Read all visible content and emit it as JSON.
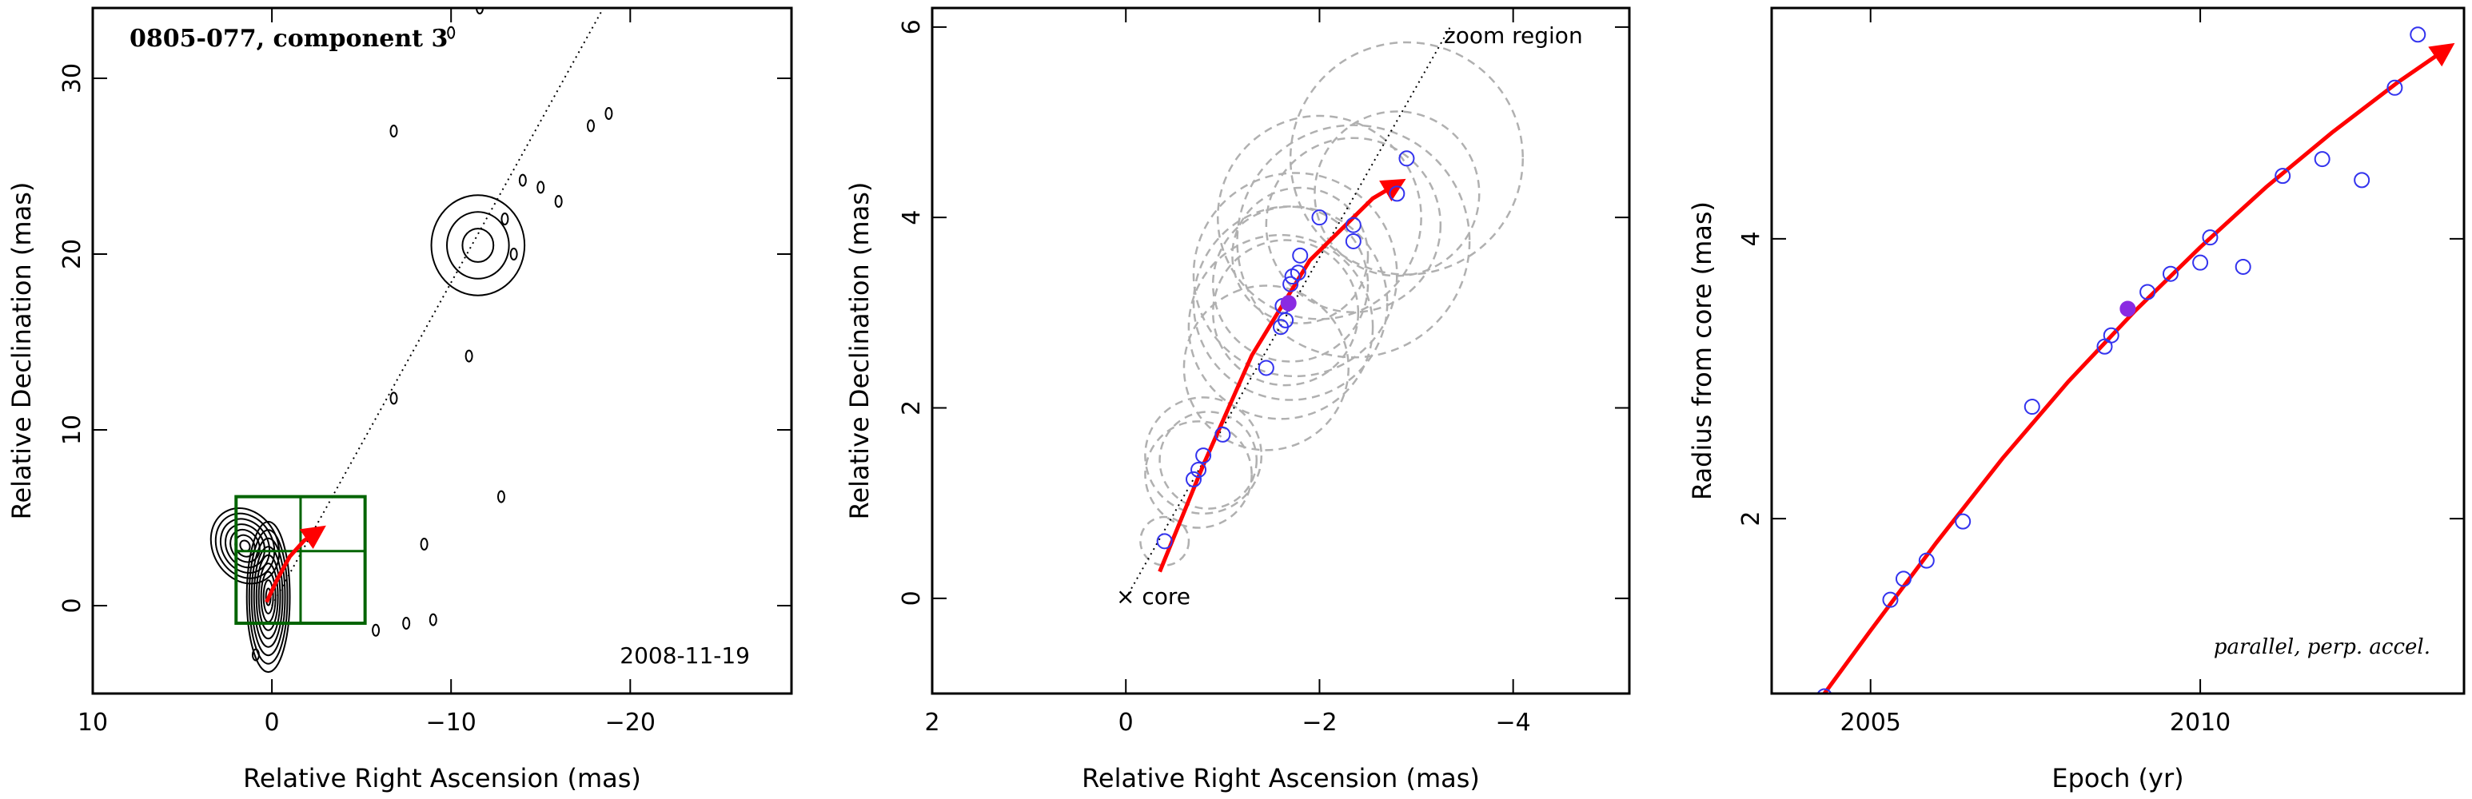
{
  "chart_data": [
    {
      "type": "scatter",
      "title": "0805-077, component 3",
      "xlabel": "Relative Right Ascension (mas)",
      "ylabel": "Relative Declination (mas)",
      "xlim": [
        10,
        -29
      ],
      "ylim": [
        -5,
        34
      ],
      "x_ticks": [
        10,
        0,
        -10,
        -20
      ],
      "y_ticks": [
        0,
        10,
        20,
        30
      ],
      "date_label": "2008-11-19",
      "plot_kind": "contour map",
      "contour_centers": [
        {
          "x": 0.2,
          "y": 0.5,
          "rx": 1.2,
          "ry": 4.2,
          "angle": 0,
          "levels": 9
        },
        {
          "x": 1.5,
          "y": 3.4,
          "rx": 1.8,
          "ry": 2.2,
          "angle": -30,
          "levels": 7
        },
        {
          "x": -11.5,
          "y": 20.5,
          "rx": 2.6,
          "ry": 2.8,
          "angle": 0,
          "levels": 3
        }
      ],
      "contour_blobs": [
        {
          "x": -6.8,
          "y": 27.0
        },
        {
          "x": -11.6,
          "y": 34.0
        },
        {
          "x": -10.0,
          "y": 32.6
        },
        {
          "x": -14.0,
          "y": 24.2
        },
        {
          "x": -15.0,
          "y": 23.8
        },
        {
          "x": -16.0,
          "y": 23.0
        },
        {
          "x": -13.0,
          "y": 22.0
        },
        {
          "x": -17.8,
          "y": 27.3
        },
        {
          "x": -18.8,
          "y": 28.0
        },
        {
          "x": -11.0,
          "y": 14.2
        },
        {
          "x": -6.8,
          "y": 11.8
        },
        {
          "x": -12.8,
          "y": 6.2
        },
        {
          "x": -8.5,
          "y": 3.5
        },
        {
          "x": -9.0,
          "y": -0.8
        },
        {
          "x": -7.5,
          "y": -1.0
        },
        {
          "x": -5.8,
          "y": -1.4
        },
        {
          "x": 0.9,
          "y": -2.8
        },
        {
          "x": -13.5,
          "y": 20.0
        }
      ],
      "jet_axis": {
        "x": [
          0,
          -18.5
        ],
        "y": [
          0,
          34
        ]
      },
      "zoom_box": {
        "x": [
          2,
          -5.2
        ],
        "y": [
          -1,
          6.2
        ]
      },
      "zoom_cross": {
        "x": -1.6,
        "y": 3.1
      },
      "trajectory": {
        "x": [
          0.3,
          -0.3,
          -1.0,
          -1.8,
          -2.8
        ],
        "y": [
          0.2,
          1.5,
          2.8,
          3.7,
          4.4
        ]
      },
      "colors": {
        "box": "#006400",
        "contour": "#000000",
        "arrow": "#ff0000",
        "axis_line": "#000000"
      }
    },
    {
      "type": "scatter",
      "xlabel": "Relative Right Ascension (mas)",
      "ylabel": "Relative Declination (mas)",
      "xlim": [
        2,
        -5.2
      ],
      "ylim": [
        -1,
        6.2
      ],
      "x_ticks": [
        2,
        0,
        -2,
        -4
      ],
      "y_ticks": [
        0,
        2,
        4,
        6
      ],
      "annotations": [
        {
          "text": "zoom region"
        },
        {
          "text": "× core"
        }
      ],
      "points": [
        {
          "x": -0.4,
          "y": 0.6
        },
        {
          "x": -0.7,
          "y": 1.25
        },
        {
          "x": -0.75,
          "y": 1.35
        },
        {
          "x": -0.8,
          "y": 1.5
        },
        {
          "x": -1.0,
          "y": 1.72
        },
        {
          "x": -1.45,
          "y": 2.42
        },
        {
          "x": -1.6,
          "y": 2.85
        },
        {
          "x": -1.65,
          "y": 2.92
        },
        {
          "x": -1.62,
          "y": 3.07
        },
        {
          "x": -1.7,
          "y": 3.3
        },
        {
          "x": -1.78,
          "y": 3.42
        },
        {
          "x": -1.72,
          "y": 3.38
        },
        {
          "x": -1.8,
          "y": 3.6
        },
        {
          "x": -2.0,
          "y": 4.0
        },
        {
          "x": -2.35,
          "y": 3.75
        },
        {
          "x": -2.35,
          "y": 3.92
        },
        {
          "x": -2.8,
          "y": 4.25
        },
        {
          "x": -2.9,
          "y": 4.62
        }
      ],
      "highlight_point": {
        "x": -1.68,
        "y": 3.1
      },
      "beam_circles": [
        {
          "x": -0.4,
          "y": 0.6,
          "r": 0.25
        },
        {
          "x": -0.75,
          "y": 1.3,
          "r": 0.55
        },
        {
          "x": -0.8,
          "y": 1.5,
          "r": 0.6
        },
        {
          "x": -0.85,
          "y": 1.45,
          "r": 0.5
        },
        {
          "x": -1.45,
          "y": 2.42,
          "r": 0.85
        },
        {
          "x": -1.6,
          "y": 2.85,
          "r": 0.95
        },
        {
          "x": -1.65,
          "y": 3.0,
          "r": 0.75
        },
        {
          "x": -1.7,
          "y": 3.1,
          "r": 1.0
        },
        {
          "x": -1.7,
          "y": 3.3,
          "r": 0.8
        },
        {
          "x": -1.75,
          "y": 3.4,
          "r": 1.05
        },
        {
          "x": -1.8,
          "y": 3.6,
          "r": 0.7
        },
        {
          "x": -2.0,
          "y": 4.0,
          "r": 1.05
        },
        {
          "x": -2.35,
          "y": 3.75,
          "r": 1.2
        },
        {
          "x": -2.35,
          "y": 3.92,
          "r": 0.9
        },
        {
          "x": -2.8,
          "y": 4.25,
          "r": 0.85
        },
        {
          "x": -2.9,
          "y": 4.62,
          "r": 1.2
        }
      ],
      "jet_axis": {
        "x": [
          0,
          -3.35
        ],
        "y": [
          0,
          6.0
        ]
      },
      "trajectory": {
        "x": [
          -0.35,
          -0.8,
          -1.3,
          -1.9,
          -2.55,
          -2.85
        ],
        "y": [
          0.28,
          1.4,
          2.55,
          3.55,
          4.2,
          4.38
        ]
      },
      "colors": {
        "points": "#3333ee",
        "highlight": "#8a2be2",
        "circles": "#b0b0b0",
        "arrow": "#ff0000"
      }
    },
    {
      "type": "scatter",
      "xlabel": "Epoch (yr)",
      "ylabel": "Radius from core (mas)",
      "xlim": [
        2003.5,
        2014.0
      ],
      "ylim": [
        0.75,
        5.65
      ],
      "x_ticks": [
        2005,
        2010
      ],
      "y_ticks": [
        2,
        4
      ],
      "annotation": "parallel, perp. accel.",
      "points": [
        {
          "x": 2004.3,
          "y": 0.73
        },
        {
          "x": 2005.3,
          "y": 1.42
        },
        {
          "x": 2005.5,
          "y": 1.57
        },
        {
          "x": 2005.85,
          "y": 1.7
        },
        {
          "x": 2006.4,
          "y": 1.98
        },
        {
          "x": 2007.45,
          "y": 2.8
        },
        {
          "x": 2008.55,
          "y": 3.23
        },
        {
          "x": 2008.65,
          "y": 3.31
        },
        {
          "x": 2009.2,
          "y": 3.62
        },
        {
          "x": 2009.55,
          "y": 3.75
        },
        {
          "x": 2010.0,
          "y": 3.83
        },
        {
          "x": 2010.15,
          "y": 4.01
        },
        {
          "x": 2010.65,
          "y": 3.8
        },
        {
          "x": 2011.25,
          "y": 4.45
        },
        {
          "x": 2011.85,
          "y": 4.57
        },
        {
          "x": 2012.45,
          "y": 4.42
        },
        {
          "x": 2012.95,
          "y": 5.08
        },
        {
          "x": 2013.3,
          "y": 5.46
        }
      ],
      "highlight_point": {
        "x": 2008.9,
        "y": 3.5
      },
      "fit_curve": {
        "x": [
          2004.3,
          2005.0,
          2006.0,
          2007.0,
          2008.0,
          2009.0,
          2010.0,
          2011.0,
          2012.0,
          2013.0,
          2013.8
        ],
        "y": [
          0.75,
          1.2,
          1.83,
          2.43,
          2.98,
          3.48,
          3.94,
          4.37,
          4.76,
          5.12,
          5.38
        ]
      },
      "colors": {
        "points": "#3333ee",
        "highlight": "#8a2be2",
        "curve": "#ff0000"
      }
    }
  ]
}
